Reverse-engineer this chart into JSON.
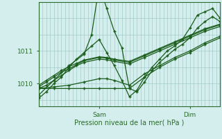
{
  "title": "",
  "xlabel": "Pression niveau de la mer( hPa )",
  "ylabel": "",
  "bg_color": "#d4eeee",
  "line_color": "#1a5c1a",
  "grid_color": "#98c4c4",
  "axis_color": "#2a6a2a",
  "yticks": [
    1010,
    1011
  ],
  "ylim": [
    1009.3,
    1012.5
  ],
  "xlim": [
    0.0,
    48.0
  ],
  "xtick_positions": [
    16,
    40
  ],
  "xtick_labels": [
    "Sam",
    "Dim"
  ],
  "series": [
    {
      "x": [
        0,
        4,
        8,
        12,
        14,
        16,
        18,
        20,
        22,
        24,
        26,
        28,
        30,
        32,
        34,
        36,
        38,
        40,
        42,
        44,
        46,
        48
      ],
      "y": [
        1009.65,
        1010.1,
        1010.55,
        1010.9,
        1011.5,
        1013.0,
        1012.3,
        1011.6,
        1011.1,
        1009.85,
        1009.75,
        1010.05,
        1010.4,
        1010.65,
        1010.85,
        1011.05,
        1011.2,
        1011.4,
        1011.7,
        1011.9,
        1012.05,
        1011.9
      ]
    },
    {
      "x": [
        0,
        4,
        8,
        12,
        16,
        20,
        24,
        28,
        32,
        36,
        40,
        44,
        48
      ],
      "y": [
        1009.85,
        1009.85,
        1009.85,
        1009.85,
        1009.85,
        1009.85,
        1009.85,
        1010.2,
        1010.5,
        1010.75,
        1010.95,
        1011.2,
        1011.4
      ]
    },
    {
      "x": [
        0,
        4,
        8,
        12,
        16,
        18,
        20,
        24,
        28,
        32,
        36,
        40,
        44,
        48
      ],
      "y": [
        1009.85,
        1009.9,
        1009.95,
        1010.05,
        1010.15,
        1010.15,
        1010.1,
        1009.95,
        1010.3,
        1010.55,
        1010.8,
        1011.0,
        1011.25,
        1011.45
      ]
    },
    {
      "x": [
        0,
        2,
        4,
        6,
        8,
        10,
        12,
        16,
        18,
        20,
        24,
        28,
        32,
        36,
        40,
        44,
        48
      ],
      "y": [
        1009.85,
        1009.95,
        1010.1,
        1010.25,
        1010.4,
        1010.55,
        1010.65,
        1010.75,
        1010.73,
        1010.68,
        1010.6,
        1010.8,
        1011.0,
        1011.2,
        1011.4,
        1011.6,
        1011.75
      ]
    },
    {
      "x": [
        0,
        2,
        4,
        6,
        8,
        10,
        12,
        16,
        18,
        20,
        24,
        28,
        32,
        36,
        40,
        44,
        48
      ],
      "y": [
        1009.9,
        1010.05,
        1010.2,
        1010.35,
        1010.45,
        1010.58,
        1010.7,
        1010.8,
        1010.78,
        1010.72,
        1010.65,
        1010.85,
        1011.05,
        1011.25,
        1011.45,
        1011.65,
        1011.8
      ]
    },
    {
      "x": [
        0,
        2,
        4,
        6,
        8,
        10,
        12,
        16,
        18,
        20,
        24,
        28,
        32,
        36,
        40,
        44,
        48
      ],
      "y": [
        1009.95,
        1010.1,
        1010.25,
        1010.4,
        1010.52,
        1010.62,
        1010.72,
        1010.82,
        1010.8,
        1010.75,
        1010.68,
        1010.88,
        1011.08,
        1011.28,
        1011.48,
        1011.68,
        1011.82
      ]
    },
    {
      "x": [
        0,
        2,
        4,
        6,
        8,
        10,
        12,
        14,
        16,
        18,
        20,
        22,
        24,
        26,
        28,
        30,
        32,
        34,
        36,
        38,
        40,
        42,
        44,
        46,
        48
      ],
      "y": [
        1009.55,
        1009.75,
        1010.0,
        1010.2,
        1010.5,
        1010.75,
        1010.95,
        1011.15,
        1011.35,
        1010.95,
        1010.55,
        1010.1,
        1009.6,
        1009.8,
        1010.2,
        1010.5,
        1010.75,
        1011.0,
        1011.15,
        1011.35,
        1011.7,
        1012.1,
        1012.2,
        1012.3,
        1012.0
      ]
    }
  ]
}
